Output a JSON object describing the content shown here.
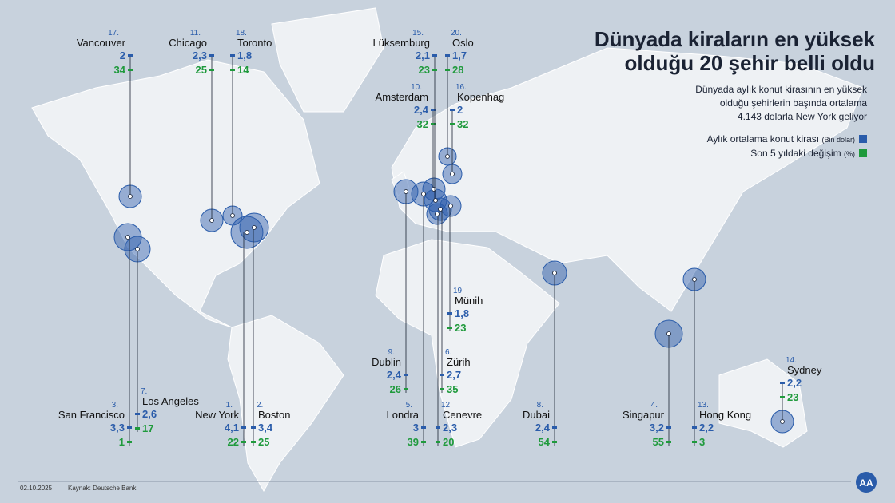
{
  "header": {
    "title_lines": [
      "Dünyada kiraların en yüksek",
      "olduğu 20 şehir belli oldu"
    ],
    "subtitle_lines": [
      "Dünyada aylık konut kirasının en yüksek",
      "olduğu şehirlerin başında ortalama",
      "4.143 dolarla New York geliyor"
    ]
  },
  "legend": [
    {
      "label": "Aylık ortalama konut kirası",
      "unit": "(Bin dolar)",
      "color": "#2a5caa"
    },
    {
      "label": "Son 5 yıldaki değişim",
      "unit": "(%)",
      "color": "#1f9a3c"
    }
  ],
  "cities": [
    {
      "rank": "1.",
      "name": "New York",
      "rent": "4,1",
      "change": "22"
    },
    {
      "rank": "2.",
      "name": "Boston",
      "rent": "3,4",
      "change": "25"
    },
    {
      "rank": "3.",
      "name": "San Francisco",
      "rent": "3,3",
      "change": "1"
    },
    {
      "rank": "4.",
      "name": "Singapur",
      "rent": "3,2",
      "change": "55"
    },
    {
      "rank": "5.",
      "name": "Londra",
      "rent": "3",
      "change": "39"
    },
    {
      "rank": "6.",
      "name": "Zürih",
      "rent": "2,7",
      "change": "35"
    },
    {
      "rank": "7.",
      "name": "Los Angeles",
      "rent": "2,6",
      "change": "17"
    },
    {
      "rank": "8.",
      "name": "Dubai",
      "rent": "2,4",
      "change": "54"
    },
    {
      "rank": "9.",
      "name": "Dublin",
      "rent": "2,4",
      "change": "26"
    },
    {
      "rank": "10.",
      "name": "Amsterdam",
      "rent": "2,4",
      "change": "32"
    },
    {
      "rank": "11.",
      "name": "Chicago",
      "rent": "2,3",
      "change": "25"
    },
    {
      "rank": "12.",
      "name": "Cenevre",
      "rent": "2,3",
      "change": "20"
    },
    {
      "rank": "13.",
      "name": "Hong Kong",
      "rent": "2,2",
      "change": "3"
    },
    {
      "rank": "14.",
      "name": "Sydney",
      "rent": "2,2",
      "change": "23"
    },
    {
      "rank": "15.",
      "name": "Lüksemburg",
      "rent": "2,1",
      "change": "23"
    },
    {
      "rank": "16.",
      "name": "Kopenhag",
      "rent": "2",
      "change": "32"
    },
    {
      "rank": "17.",
      "name": "Vancouver",
      "rent": "2",
      "change": "34"
    },
    {
      "rank": "18.",
      "name": "Toronto",
      "rent": "1,8",
      "change": "14"
    },
    {
      "rank": "19.",
      "name": "Münih",
      "rent": "1,8",
      "change": "23"
    },
    {
      "rank": "20.",
      "name": "Oslo",
      "rent": "1,7",
      "change": "28"
    }
  ],
  "footer": {
    "date": "02.10.2025",
    "source": "Kaynak: Deutsche Bank",
    "logo": "AA"
  }
}
